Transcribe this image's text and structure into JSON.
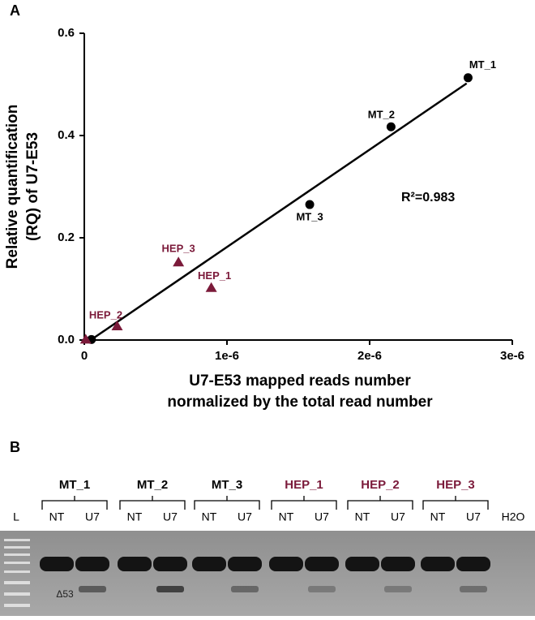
{
  "panel_labels": [
    "A",
    "B"
  ],
  "chart_data": {
    "type": "scatter",
    "xlabel": [
      "U7-E53 mapped reads number",
      "normalized by the total read number"
    ],
    "ylabel": [
      "Relative quantification",
      "(RQ) of U7-E53"
    ],
    "xlim": [
      0,
      3e-06
    ],
    "ylim": [
      0,
      0.6
    ],
    "xticks": [
      0,
      {
        "value": 1e-06,
        "label": "1e-6"
      },
      {
        "value": 2e-06,
        "label": "2e-6"
      },
      {
        "value": 3e-06,
        "label": "3e-6"
      }
    ],
    "yticks": [
      {
        "value": 0,
        "label": "0.0"
      },
      {
        "value": 0.2,
        "label": "0.2"
      },
      {
        "value": 0.4,
        "label": "0.4"
      },
      {
        "value": 0.6,
        "label": "0.6"
      }
    ],
    "series": [
      {
        "color": "#000000",
        "marker": "circle",
        "x": [
          2.69e-06,
          2.15e-06,
          1.58e-06,
          5e-08
        ],
        "values": [
          0.513,
          0.417,
          0.265,
          0.001
        ],
        "point_labels": [
          "MT_1",
          "MT_2",
          "MT_3",
          null
        ]
      },
      {
        "color": "#7b1a3a",
        "marker": "triangle",
        "x": [
          8.9e-07,
          2.3e-07,
          6.6e-07,
          1e-08
        ],
        "values": [
          0.102,
          0.027,
          0.152,
          0.001
        ],
        "point_labels": [
          "HEP_1",
          "HEP_2",
          "HEP_3",
          null
        ]
      }
    ],
    "fit_line": {
      "color": "#000000",
      "x": [
        4.5e-08,
        2.68e-06
      ],
      "values": [
        0,
        0.502
      ]
    },
    "annotation": "R²=0.983"
  },
  "gel": {
    "groups": [
      {
        "label": "MT_1",
        "color": "#000000"
      },
      {
        "label": "MT_2",
        "color": "#000000"
      },
      {
        "label": "MT_3",
        "color": "#000000"
      },
      {
        "label": "HEP_1",
        "color": "#7b1a3a"
      },
      {
        "label": "HEP_2",
        "color": "#7b1a3a"
      },
      {
        "label": "HEP_3",
        "color": "#7b1a3a"
      }
    ],
    "lanes": [
      "NT",
      "U7"
    ],
    "ladder": "L",
    "control": "H2O",
    "band_label": "Δ53"
  }
}
